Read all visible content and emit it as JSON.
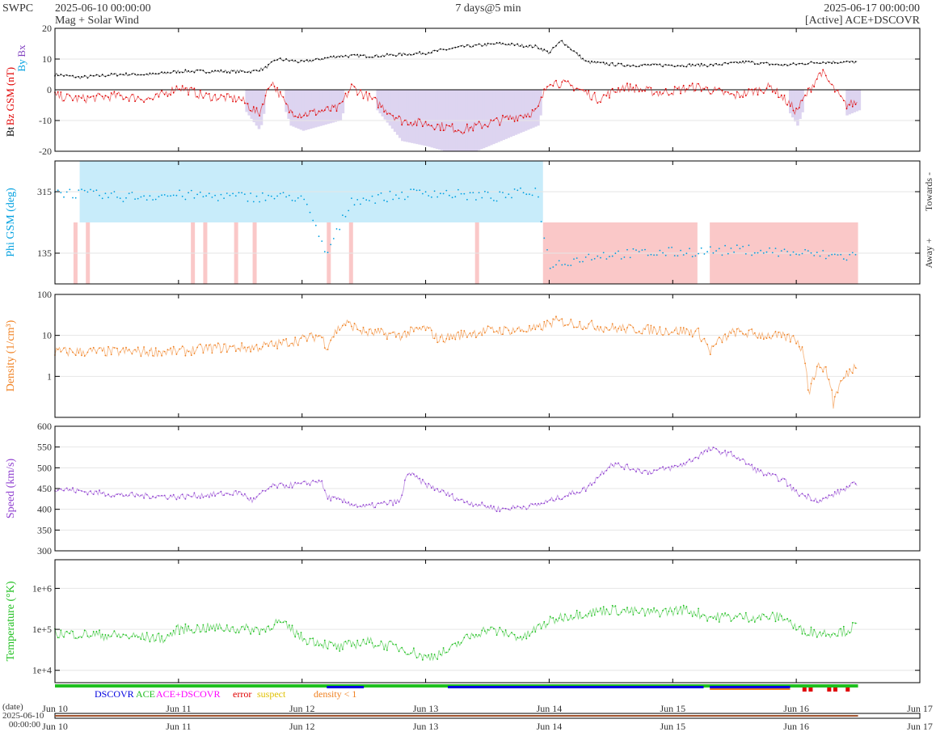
{
  "header": {
    "agency": "SWPC",
    "start": "2025-06-10 00:00:00",
    "subtitle": "Mag + Solar Wind",
    "span": "7 days@5 min",
    "end": "2025-06-17 00:00:00",
    "source": "[Active] ACE+DSCOVR"
  },
  "colors": {
    "bt": "#000000",
    "bz": "#e00000",
    "bx": "#8040c0",
    "by": "#00a0e0",
    "phi": "#00a0e0",
    "towards_fill": "#c8ecfa",
    "away_fill": "#fac8c8",
    "south_fill": "#ddd4f0",
    "density": "#f08020",
    "speed": "#9040d0",
    "temperature": "#20c020",
    "dscovr": "#0000e0",
    "ace": "#20c020",
    "ace_dscovr": "#ff00ff",
    "error": "#e00000",
    "suspect": "#e0c000",
    "density_lt1": "#f08020"
  },
  "chart_data": [
    {
      "id": "mag",
      "type": "line",
      "ylabel_parts": [
        "Bt",
        "Bz GSM (nT)",
        "Bx",
        "By"
      ],
      "ylim": [
        -20,
        20
      ],
      "yticks": [
        -20,
        -10,
        0,
        10,
        20
      ],
      "series": [
        {
          "name": "Bt",
          "x": [
            0,
            0.2,
            0.5,
            0.8,
            1.0,
            1.3,
            1.6,
            1.7,
            1.8,
            2.0,
            2.3,
            2.6,
            3.0,
            3.3,
            3.6,
            3.9,
            4.0,
            4.1,
            4.3,
            4.6,
            4.9,
            5.3,
            5.6,
            5.9,
            6.2,
            6.5
          ],
          "values": [
            5,
            4,
            5,
            5,
            6,
            6,
            6,
            7,
            10,
            9,
            11,
            11,
            12,
            14,
            15,
            14,
            12,
            16,
            9,
            8,
            8,
            8,
            9,
            8,
            9,
            9
          ]
        },
        {
          "name": "Bz GSM",
          "x": [
            0,
            0.2,
            0.5,
            0.8,
            1.0,
            1.2,
            1.5,
            1.65,
            1.75,
            1.9,
            2.0,
            2.3,
            2.4,
            2.6,
            2.8,
            3.0,
            3.3,
            3.6,
            3.9,
            4.0,
            4.2,
            4.4,
            4.6,
            4.9,
            5.2,
            5.5,
            5.8,
            6.0,
            6.2,
            6.4,
            6.5
          ],
          "values": [
            -2,
            -3,
            -2,
            -3,
            1,
            -2,
            -3,
            -8,
            3,
            -7,
            -8,
            -6,
            1,
            -4,
            -10,
            -11,
            -13,
            -10,
            -7,
            3,
            1,
            -3,
            1,
            -1,
            1,
            -2,
            1,
            -7,
            6,
            -5,
            -4
          ]
        }
      ]
    },
    {
      "id": "phi",
      "type": "scatter",
      "ylabel": "Phi GSM (deg)",
      "ylim": [
        45,
        405
      ],
      "yticks": [
        135,
        315
      ],
      "right_labels": [
        "Towards -",
        "Away +"
      ],
      "series": [
        {
          "name": "Phi GSM",
          "x": [
            0,
            0.5,
            1.0,
            1.5,
            2.0,
            2.2,
            2.4,
            2.7,
            3.0,
            3.3,
            3.6,
            3.9,
            4.0,
            4.4,
            4.8,
            5.2,
            5.6,
            6.0,
            6.4,
            6.5
          ],
          "values": [
            315,
            300,
            305,
            300,
            300,
            130,
            290,
            300,
            315,
            305,
            300,
            320,
            100,
            130,
            135,
            140,
            145,
            135,
            125,
            130
          ]
        }
      ]
    },
    {
      "id": "density",
      "type": "line",
      "ylabel": "Density (1/cm³)",
      "yscale": "log",
      "ylim": [
        0.1,
        100
      ],
      "yticks": [
        1,
        10,
        100
      ],
      "series": [
        {
          "name": "Density",
          "x": [
            0,
            0.5,
            0.9,
            1.0,
            1.3,
            1.6,
            1.8,
            2.0,
            2.15,
            2.2,
            2.35,
            2.5,
            2.8,
            3.0,
            3.1,
            3.5,
            3.9,
            4.05,
            4.5,
            5.0,
            5.2,
            5.3,
            5.5,
            5.9,
            6.0,
            6.1,
            6.2,
            6.3,
            6.4,
            6.5
          ],
          "values": [
            4,
            4,
            4,
            4,
            5,
            5,
            6,
            8,
            10,
            5,
            20,
            12,
            10,
            15,
            8,
            13,
            14,
            22,
            15,
            13,
            12,
            4,
            12,
            9,
            8,
            0.3,
            2,
            0.2,
            1,
            2
          ]
        }
      ]
    },
    {
      "id": "speed",
      "type": "line",
      "ylabel": "Speed (km/s)",
      "ylim": [
        300,
        600
      ],
      "yticks": [
        300,
        350,
        400,
        450,
        500,
        550,
        600
      ],
      "series": [
        {
          "name": "Speed",
          "x": [
            0,
            0.5,
            1.0,
            1.5,
            1.6,
            1.75,
            2.0,
            2.15,
            2.2,
            2.5,
            2.8,
            2.85,
            3.0,
            3.3,
            3.6,
            3.9,
            4.2,
            4.3,
            4.5,
            4.8,
            5.0,
            5.1,
            5.3,
            5.5,
            5.7,
            5.9,
            6.0,
            6.2,
            6.4,
            6.5
          ],
          "values": [
            450,
            435,
            430,
            440,
            420,
            455,
            460,
            470,
            430,
            405,
            420,
            490,
            460,
            420,
            400,
            410,
            440,
            450,
            510,
            490,
            500,
            510,
            545,
            530,
            490,
            470,
            440,
            420,
            450,
            465
          ]
        }
      ]
    },
    {
      "id": "temperature",
      "type": "line",
      "ylabel": "Temperature (°K)",
      "yscale": "log",
      "ylim": [
        5000,
        5000000
      ],
      "yticks": [
        10000,
        100000,
        1000000
      ],
      "yticklabels": [
        "1e+4",
        "1e+5",
        "1e+6"
      ],
      "series": [
        {
          "name": "Temperature",
          "x": [
            0,
            0.5,
            0.9,
            1.0,
            1.3,
            1.6,
            1.7,
            1.8,
            2.0,
            2.3,
            2.5,
            2.8,
            3.0,
            3.2,
            3.5,
            3.8,
            4.0,
            4.1,
            4.5,
            4.8,
            5.1,
            5.3,
            5.6,
            5.9,
            6.0,
            6.2,
            6.4,
            6.5
          ],
          "values": [
            80000,
            70000,
            60000,
            100000,
            110000,
            100000,
            100000,
            150000,
            60000,
            35000,
            50000,
            35000,
            20000,
            30000,
            100000,
            60000,
            150000,
            200000,
            300000,
            250000,
            300000,
            200000,
            200000,
            200000,
            100000,
            80000,
            90000,
            130000
          ]
        }
      ]
    }
  ],
  "source_bar": {
    "legend": [
      "DSCOVR",
      "ACE",
      "ACE+DSCOVR",
      "error",
      "suspect",
      "density < 1"
    ]
  },
  "time_axis": {
    "xlim": [
      0,
      7
    ],
    "xticks": [
      0,
      1,
      2,
      3,
      4,
      5,
      6,
      7
    ],
    "labels": [
      "Jun 10",
      "Jun 11",
      "Jun 12",
      "Jun 13",
      "Jun 14",
      "Jun 15",
      "Jun 16",
      "Jun 17"
    ],
    "date_label": "(date)",
    "date_value": "2025-06-10",
    "time_value": "00:00:00"
  }
}
